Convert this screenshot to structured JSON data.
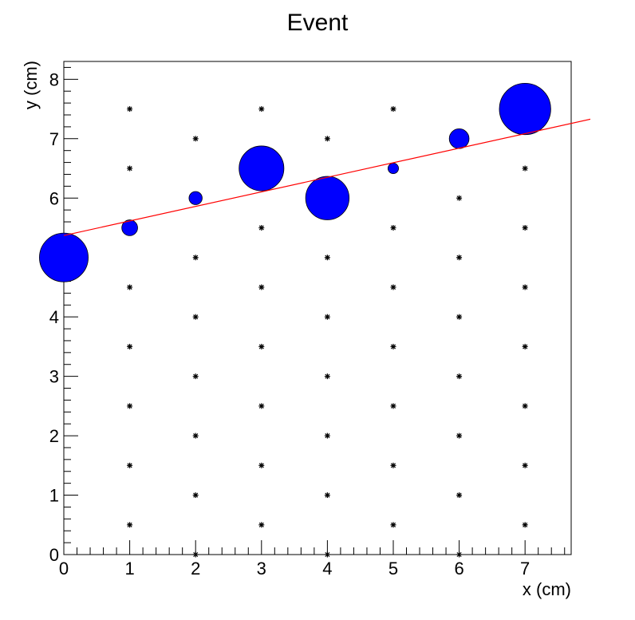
{
  "chart_data": {
    "type": "scatter",
    "title": "Event",
    "xlabel": "x (cm)",
    "ylabel": "y (cm)",
    "xlim": [
      0,
      7.7
    ],
    "ylim": [
      0,
      8.3
    ],
    "xticks": [
      0,
      1,
      2,
      3,
      4,
      5,
      6,
      7
    ],
    "yticks": [
      0,
      1,
      2,
      3,
      4,
      5,
      6,
      7,
      8
    ],
    "ytick_labels_shown": [
      "0",
      "1",
      "2",
      "3",
      "4",
      "",
      "6",
      "7",
      "8"
    ],
    "grid": false,
    "colors": {
      "hits": "#0000ff",
      "fit_line": "#ff0000",
      "markers": "#000000"
    },
    "hits": [
      {
        "x": 0,
        "y": 5.0,
        "radius_cm": 0.37
      },
      {
        "x": 1,
        "y": 5.5,
        "radius_cm": 0.12
      },
      {
        "x": 2,
        "y": 6.0,
        "radius_cm": 0.1
      },
      {
        "x": 3,
        "y": 6.5,
        "radius_cm": 0.34
      },
      {
        "x": 4,
        "y": 6.0,
        "radius_cm": 0.33
      },
      {
        "x": 5,
        "y": 6.5,
        "radius_cm": 0.08
      },
      {
        "x": 6,
        "y": 7.0,
        "radius_cm": 0.15
      },
      {
        "x": 7,
        "y": 7.5,
        "radius_cm": 0.39
      }
    ],
    "fit_line": {
      "x": [
        0,
        8.0
      ],
      "y": [
        5.37,
        7.33
      ]
    },
    "detector_markers": [
      [
        1,
        0.5
      ],
      [
        1,
        1.5
      ],
      [
        1,
        2.5
      ],
      [
        1,
        3.5
      ],
      [
        1,
        4.5
      ],
      [
        1,
        6.5
      ],
      [
        1,
        7.5
      ],
      [
        2,
        0
      ],
      [
        2,
        1
      ],
      [
        2,
        2
      ],
      [
        2,
        3
      ],
      [
        2,
        4
      ],
      [
        2,
        5
      ],
      [
        2,
        7
      ],
      [
        3,
        0.5
      ],
      [
        3,
        1.5
      ],
      [
        3,
        2.5
      ],
      [
        3,
        3.5
      ],
      [
        3,
        4.5
      ],
      [
        3,
        5.5
      ],
      [
        3,
        7.5
      ],
      [
        4,
        0
      ],
      [
        4,
        1
      ],
      [
        4,
        2
      ],
      [
        4,
        3
      ],
      [
        4,
        4
      ],
      [
        4,
        5
      ],
      [
        4,
        7
      ],
      [
        5,
        0.5
      ],
      [
        5,
        1.5
      ],
      [
        5,
        2.5
      ],
      [
        5,
        3.5
      ],
      [
        5,
        4.5
      ],
      [
        5,
        5.5
      ],
      [
        5,
        7.5
      ],
      [
        6,
        0
      ],
      [
        6,
        1
      ],
      [
        6,
        2
      ],
      [
        6,
        3
      ],
      [
        6,
        4
      ],
      [
        6,
        5
      ],
      [
        6,
        6
      ],
      [
        7,
        0.5
      ],
      [
        7,
        1.5
      ],
      [
        7,
        2.5
      ],
      [
        7,
        3.5
      ],
      [
        7,
        4.5
      ],
      [
        7,
        5.5
      ],
      [
        7,
        6.5
      ]
    ]
  }
}
